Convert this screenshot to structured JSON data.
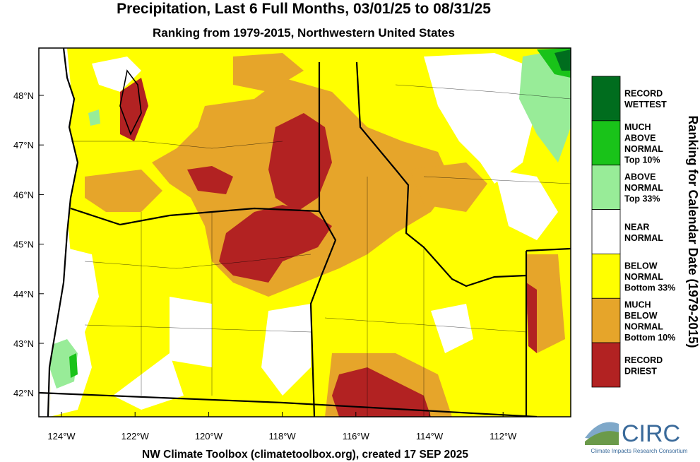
{
  "header": {
    "title": "Precipitation, Last 6 Full Months, 03/01/25 to 08/31/25",
    "subtitle": "Ranking from 1979-2015, Northwestern United States"
  },
  "map": {
    "lat_labels": [
      "48°N",
      "47°N",
      "46°N",
      "45°N",
      "44°N",
      "43°N",
      "42°N"
    ],
    "lon_labels": [
      "124°W",
      "122°W",
      "120°W",
      "118°W",
      "116°W",
      "114°W",
      "112°W"
    ]
  },
  "legend": {
    "title": "Ranking for Calendar Date (1979-2015)",
    "items": [
      {
        "lines": [
          "RECORD",
          "WETTEST"
        ],
        "color": "#006d1e"
      },
      {
        "lines": [
          "MUCH",
          "ABOVE",
          "NORMAL",
          "Top 10%"
        ],
        "color": "#19c319"
      },
      {
        "lines": [
          "ABOVE",
          "NORMAL",
          "Top 33%"
        ],
        "color": "#98ec98"
      },
      {
        "lines": [
          "NEAR",
          "NORMAL"
        ],
        "color": "#ffffff"
      },
      {
        "lines": [
          "BELOW",
          "NORMAL",
          "Bottom 33%"
        ],
        "color": "#ffff00"
      },
      {
        "lines": [
          "MUCH",
          "BELOW",
          "NORMAL",
          "Bottom 10%"
        ],
        "color": "#e6a52a"
      },
      {
        "lines": [
          "RECORD",
          "DRIEST"
        ],
        "color": "#b22222"
      }
    ]
  },
  "footer": {
    "credit": "NW Climate Toolbox (climatetoolbox.org), created 17 SEP 2025",
    "logo": {
      "name": "CIRC",
      "subtitle": "Climate Impacts Research Consortium"
    }
  }
}
